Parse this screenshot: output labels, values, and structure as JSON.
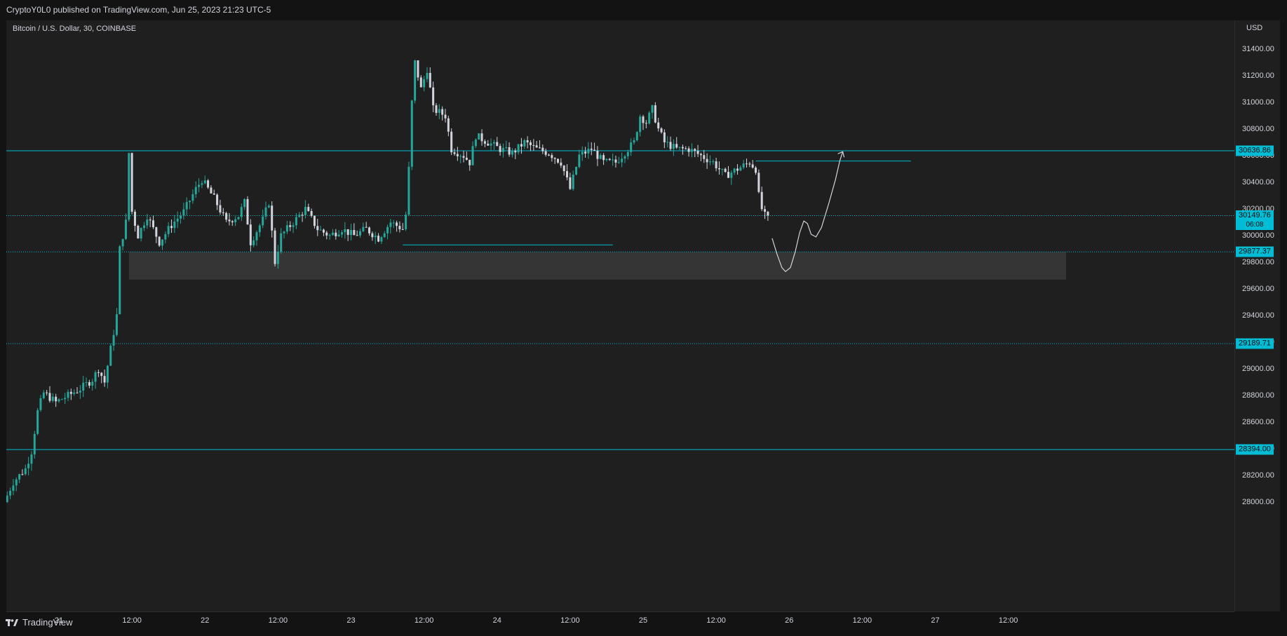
{
  "header": {
    "published": "CryptoY0L0 published on TradingView.com, Jun 25, 2023 21:23 UTC-5"
  },
  "symbol": "Bitcoin / U.S. Dollar, 30, COINBASE",
  "currency": "USD",
  "footer": {
    "brand": "TradingView",
    "logo_icon": "tradingview-logo-icon"
  },
  "colors": {
    "up": "#26a69a",
    "down": "#d1d4dc",
    "line": "#00bcd4",
    "zone": "#353535",
    "background": "#1f1f1f"
  },
  "chart_data": {
    "type": "candlestick",
    "title": "Bitcoin / U.S. Dollar, 30, COINBASE",
    "ylim": [
      27900,
      31600
    ],
    "y_ticks": [
      "31400.00",
      "31200.00",
      "31000.00",
      "30800.00",
      "30600.00",
      "30400.00",
      "30200.00",
      "30000.00",
      "29800.00",
      "29600.00",
      "29400.00",
      "29200.00",
      "29000.00",
      "28800.00",
      "28600.00",
      "28400.00",
      "28200.00",
      "28000.00"
    ],
    "x_ticks": [
      {
        "label": "21",
        "t": 0
      },
      {
        "label": "12:00",
        "t": 12
      },
      {
        "label": "22",
        "t": 24
      },
      {
        "label": "12:00",
        "t": 36
      },
      {
        "label": "23",
        "t": 48
      },
      {
        "label": "12:00",
        "t": 60
      },
      {
        "label": "24",
        "t": 72
      },
      {
        "label": "12:00",
        "t": 84
      },
      {
        "label": "25",
        "t": 96
      },
      {
        "label": "12:00",
        "t": 108
      },
      {
        "label": "26",
        "t": 120
      },
      {
        "label": "12:00",
        "t": 132
      },
      {
        "label": "27",
        "t": 144
      },
      {
        "label": "12:00",
        "t": 156
      }
    ],
    "x_range_hours": [
      -8.5,
      165.5
    ],
    "price_labels": [
      {
        "value": "30636.86",
        "price": 30636.86
      },
      {
        "value": "30149.76",
        "price": 30149.76,
        "sub": "06:08"
      },
      {
        "value": "29877.37",
        "price": 29877.37
      },
      {
        "value": "29189.71",
        "price": 29189.71
      },
      {
        "value": "28394.00",
        "price": 28394.0
      }
    ],
    "horizontal_lines": [
      {
        "price": 30636.86,
        "style": "solid"
      },
      {
        "price": 28394.0,
        "style": "solid"
      },
      {
        "price": 30149.76,
        "style": "dotted"
      },
      {
        "price": 29877.37,
        "style": "dotted"
      },
      {
        "price": 29189.71,
        "style": "dotted"
      }
    ],
    "segments": [
      {
        "from_t": 56.5,
        "to_t": 91.0,
        "price": 29930
      },
      {
        "from_t": 114.5,
        "to_t": 140.0,
        "price": 30560
      }
    ],
    "demand_zone": {
      "from_t": 11.5,
      "to_t": 165.5,
      "top": 29877.37,
      "bottom": 29670
    },
    "projection": [
      {
        "t": 117.2,
        "p": 29980
      },
      {
        "t": 118.0,
        "p": 29860
      },
      {
        "t": 118.8,
        "p": 29760
      },
      {
        "t": 119.4,
        "p": 29730
      },
      {
        "t": 120.2,
        "p": 29760
      },
      {
        "t": 121.0,
        "p": 29880
      },
      {
        "t": 121.7,
        "p": 30020
      },
      {
        "t": 122.4,
        "p": 30110
      },
      {
        "t": 123.0,
        "p": 30090
      },
      {
        "t": 123.6,
        "p": 30010
      },
      {
        "t": 124.4,
        "p": 29990
      },
      {
        "t": 125.3,
        "p": 30060
      },
      {
        "t": 126.5,
        "p": 30240
      },
      {
        "t": 127.6,
        "p": 30420
      },
      {
        "t": 128.3,
        "p": 30560
      },
      {
        "t": 128.8,
        "p": 30630
      }
    ],
    "anchors": [
      {
        "t": -8.5,
        "p": 28000
      },
      {
        "t": -7,
        "p": 28150
      },
      {
        "t": -5,
        "p": 28250
      },
      {
        "t": -4,
        "p": 28380
      },
      {
        "t": -3,
        "p": 28680
      },
      {
        "t": -2,
        "p": 28820
      },
      {
        "t": 0,
        "p": 28750
      },
      {
        "t": 2,
        "p": 28800
      },
      {
        "t": 4,
        "p": 28850
      },
      {
        "t": 6,
        "p": 28920
      },
      {
        "t": 7,
        "p": 29000
      },
      {
        "t": 8,
        "p": 28900
      },
      {
        "t": 10,
        "p": 29400
      },
      {
        "t": 10.5,
        "p": 29900
      },
      {
        "t": 11.5,
        "p": 30100
      },
      {
        "t": 12,
        "p": 30620
      },
      {
        "t": 12.5,
        "p": 30180
      },
      {
        "t": 13.5,
        "p": 30000
      },
      {
        "t": 15,
        "p": 30150
      },
      {
        "t": 17,
        "p": 29950
      },
      {
        "t": 19,
        "p": 30080
      },
      {
        "t": 21,
        "p": 30180
      },
      {
        "t": 23,
        "p": 30350
      },
      {
        "t": 24,
        "p": 30420
      },
      {
        "t": 26,
        "p": 30280
      },
      {
        "t": 28,
        "p": 30100
      },
      {
        "t": 30,
        "p": 30150
      },
      {
        "t": 31,
        "p": 30250
      },
      {
        "t": 32,
        "p": 29950
      },
      {
        "t": 34,
        "p": 30120
      },
      {
        "t": 35,
        "p": 30250
      },
      {
        "t": 36,
        "p": 29800
      },
      {
        "t": 37,
        "p": 30000
      },
      {
        "t": 39,
        "p": 30100
      },
      {
        "t": 41,
        "p": 30200
      },
      {
        "t": 43,
        "p": 30050
      },
      {
        "t": 45,
        "p": 30000
      },
      {
        "t": 47,
        "p": 30050
      },
      {
        "t": 49,
        "p": 30000
      },
      {
        "t": 51,
        "p": 30050
      },
      {
        "t": 53,
        "p": 29980
      },
      {
        "t": 55,
        "p": 30100
      },
      {
        "t": 57,
        "p": 30050
      },
      {
        "t": 57.7,
        "p": 30200
      },
      {
        "t": 58.5,
        "p": 31000
      },
      {
        "t": 59,
        "p": 31300
      },
      {
        "t": 60,
        "p": 31100
      },
      {
        "t": 61,
        "p": 31250
      },
      {
        "t": 62,
        "p": 30950
      },
      {
        "t": 64,
        "p": 30900
      },
      {
        "t": 65,
        "p": 30650
      },
      {
        "t": 67,
        "p": 30600
      },
      {
        "t": 68,
        "p": 30550
      },
      {
        "t": 69,
        "p": 30750
      },
      {
        "t": 71,
        "p": 30700
      },
      {
        "t": 73,
        "p": 30650
      },
      {
        "t": 75,
        "p": 30620
      },
      {
        "t": 77,
        "p": 30700
      },
      {
        "t": 79,
        "p": 30650
      },
      {
        "t": 81,
        "p": 30620
      },
      {
        "t": 83,
        "p": 30550
      },
      {
        "t": 84.5,
        "p": 30350
      },
      {
        "t": 86,
        "p": 30600
      },
      {
        "t": 88,
        "p": 30650
      },
      {
        "t": 90,
        "p": 30550
      },
      {
        "t": 92,
        "p": 30550
      },
      {
        "t": 94,
        "p": 30650
      },
      {
        "t": 95,
        "p": 30700
      },
      {
        "t": 96,
        "p": 30900
      },
      {
        "t": 97,
        "p": 30850
      },
      {
        "t": 98,
        "p": 30950
      },
      {
        "t": 99,
        "p": 30800
      },
      {
        "t": 100,
        "p": 30700
      },
      {
        "t": 102,
        "p": 30650
      },
      {
        "t": 104,
        "p": 30650
      },
      {
        "t": 106,
        "p": 30600
      },
      {
        "t": 108,
        "p": 30550
      },
      {
        "t": 110,
        "p": 30450
      },
      {
        "t": 112,
        "p": 30500
      },
      {
        "t": 114,
        "p": 30550
      },
      {
        "t": 115,
        "p": 30500
      },
      {
        "t": 115.5,
        "p": 30300
      },
      {
        "t": 116,
        "p": 30200
      },
      {
        "t": 116.5,
        "p": 30149.76
      }
    ],
    "candle_start_hours": -8.5,
    "candle_end_hours": 116.5,
    "candle_interval_hours": 0.5
  }
}
